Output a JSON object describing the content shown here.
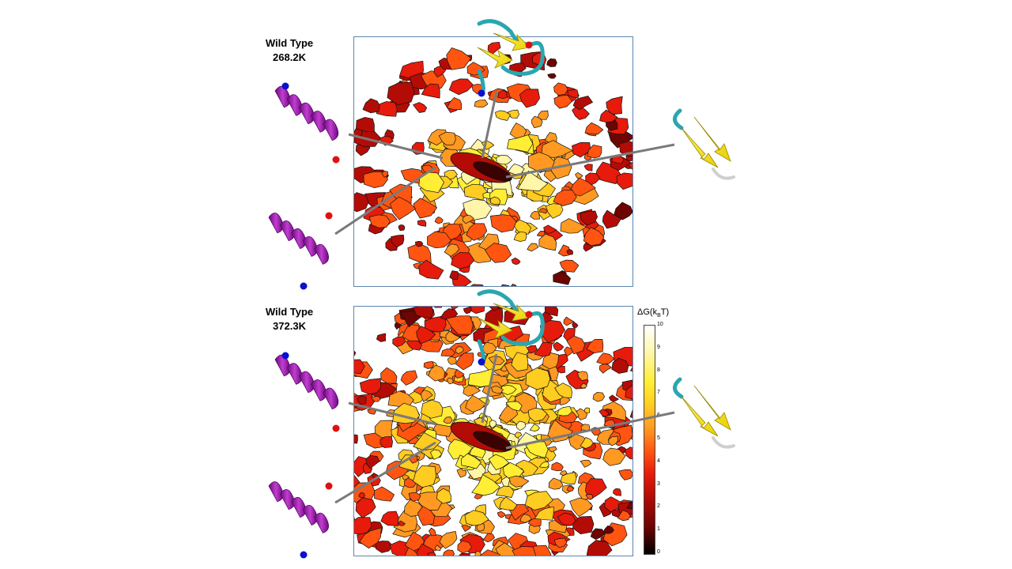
{
  "panels": [
    {
      "title": "Wild Type",
      "temperature": "268.2K"
    },
    {
      "title": "Wild Type",
      "temperature": "372.3K"
    }
  ],
  "colorbar": {
    "label": "ΔG(kBT)",
    "ticks": [
      "10",
      "9",
      "8",
      "7",
      "6",
      "5",
      "4",
      "3",
      "2",
      "1",
      "0"
    ],
    "colors": [
      "#ffffff",
      "#fff6a8",
      "#ffee33",
      "#ffcc22",
      "#ff9922",
      "#ff5511",
      "#e61b0b",
      "#b30c06",
      "#6d0503",
      "#000000"
    ]
  },
  "icons": {
    "helix_structure": "helix-icon",
    "hairpin_structure": "hairpin-icon",
    "terminus_n": "blue",
    "terminus_c": "red"
  }
}
